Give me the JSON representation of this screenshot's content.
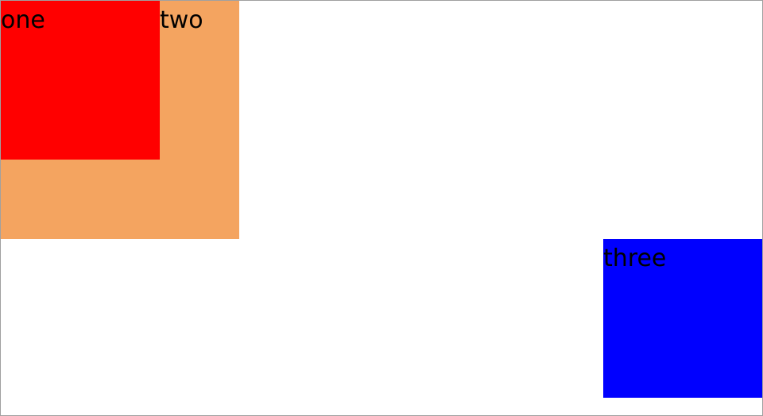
{
  "boxes": {
    "one": {
      "label": "one",
      "color": "#ff0000"
    },
    "two": {
      "label": "two",
      "color": "#f4a460"
    },
    "three": {
      "label": "three",
      "color": "#0000ff"
    }
  }
}
